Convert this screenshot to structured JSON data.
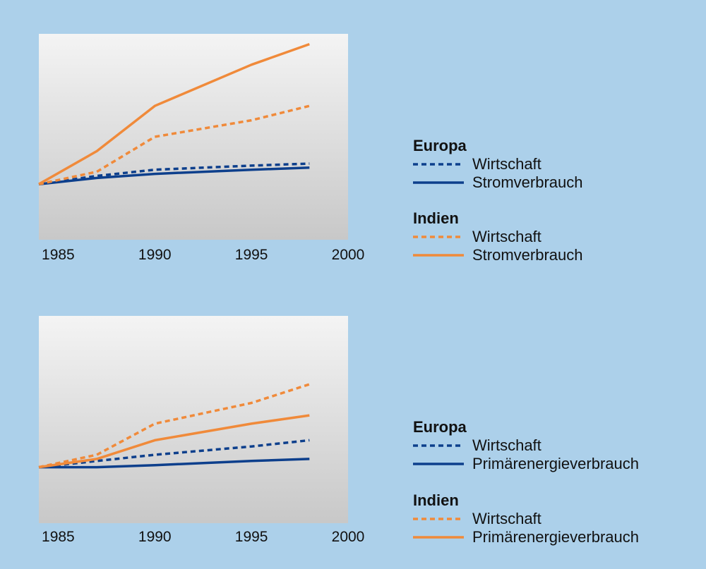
{
  "colors": {
    "background": "#acd0ea",
    "europa": "#0d3f8c",
    "indien": "#f08a3a",
    "plot_top": "#f4f4f4",
    "plot_bottom": "#c8c8c8"
  },
  "chart_data": [
    {
      "type": "line",
      "x_ticks": [
        "1985",
        "1990",
        "1995",
        "2000"
      ],
      "xlim": [
        1984,
        2000
      ],
      "ylim": [
        0,
        100
      ],
      "grid": false,
      "legend_placement": "right",
      "legend_groups": [
        {
          "title": "Europa",
          "items": [
            {
              "label": "Wirtschaft",
              "style": "dotted",
              "color": "europa"
            },
            {
              "label": "Stromverbrauch",
              "style": "solid",
              "color": "europa"
            }
          ]
        },
        {
          "title": "Indien",
          "items": [
            {
              "label": "Wirtschaft",
              "style": "dotted",
              "color": "indien"
            },
            {
              "label": "Stromverbrauch",
              "style": "solid",
              "color": "indien"
            }
          ]
        }
      ],
      "series": [
        {
          "group": "Europa",
          "label": "Wirtschaft",
          "style": "dotted",
          "color": "europa",
          "x": [
            1984,
            1987,
            1990,
            1995,
            1998
          ],
          "y": [
            27,
            31,
            34,
            36,
            37
          ]
        },
        {
          "group": "Europa",
          "label": "Stromverbrauch",
          "style": "solid",
          "color": "europa",
          "x": [
            1984,
            1987,
            1990,
            1995,
            1998
          ],
          "y": [
            27,
            30,
            32,
            34,
            35
          ]
        },
        {
          "group": "Indien",
          "label": "Wirtschaft",
          "style": "dotted",
          "color": "indien",
          "x": [
            1984,
            1987,
            1990,
            1995,
            1998
          ],
          "y": [
            27,
            33,
            50,
            58,
            65
          ]
        },
        {
          "group": "Indien",
          "label": "Stromverbrauch",
          "style": "solid",
          "color": "indien",
          "x": [
            1984,
            1987,
            1990,
            1995,
            1998
          ],
          "y": [
            27,
            43,
            65,
            85,
            95
          ]
        }
      ]
    },
    {
      "type": "line",
      "x_ticks": [
        "1985",
        "1990",
        "1995",
        "2000"
      ],
      "xlim": [
        1984,
        2000
      ],
      "ylim": [
        0,
        100
      ],
      "grid": false,
      "legend_placement": "right",
      "legend_groups": [
        {
          "title": "Europa",
          "items": [
            {
              "label": "Wirtschaft",
              "style": "dotted",
              "color": "europa"
            },
            {
              "label": "Primärenergieverbrauch",
              "style": "solid",
              "color": "europa"
            }
          ]
        },
        {
          "title": "Indien",
          "items": [
            {
              "label": "Wirtschaft",
              "style": "dotted",
              "color": "indien"
            },
            {
              "label": "Primärenergieverbrauch",
              "style": "solid",
              "color": "indien"
            }
          ]
        }
      ],
      "series": [
        {
          "group": "Europa",
          "label": "Wirtschaft",
          "style": "dotted",
          "color": "europa",
          "x": [
            1984,
            1987,
            1990,
            1995,
            1998
          ],
          "y": [
            27,
            30,
            33,
            37,
            40
          ]
        },
        {
          "group": "Europa",
          "label": "Primärenergieverbrauch",
          "style": "solid",
          "color": "europa",
          "x": [
            1984,
            1987,
            1990,
            1995,
            1998
          ],
          "y": [
            27,
            27,
            28,
            30,
            31
          ]
        },
        {
          "group": "Indien",
          "label": "Wirtschaft",
          "style": "dotted",
          "color": "indien",
          "x": [
            1984,
            1987,
            1990,
            1995,
            1998
          ],
          "y": [
            27,
            33,
            48,
            58,
            67
          ]
        },
        {
          "group": "Indien",
          "label": "Primärenergieverbrauch",
          "style": "solid",
          "color": "indien",
          "x": [
            1984,
            1987,
            1990,
            1995,
            1998
          ],
          "y": [
            27,
            31,
            40,
            48,
            52
          ]
        }
      ]
    }
  ]
}
